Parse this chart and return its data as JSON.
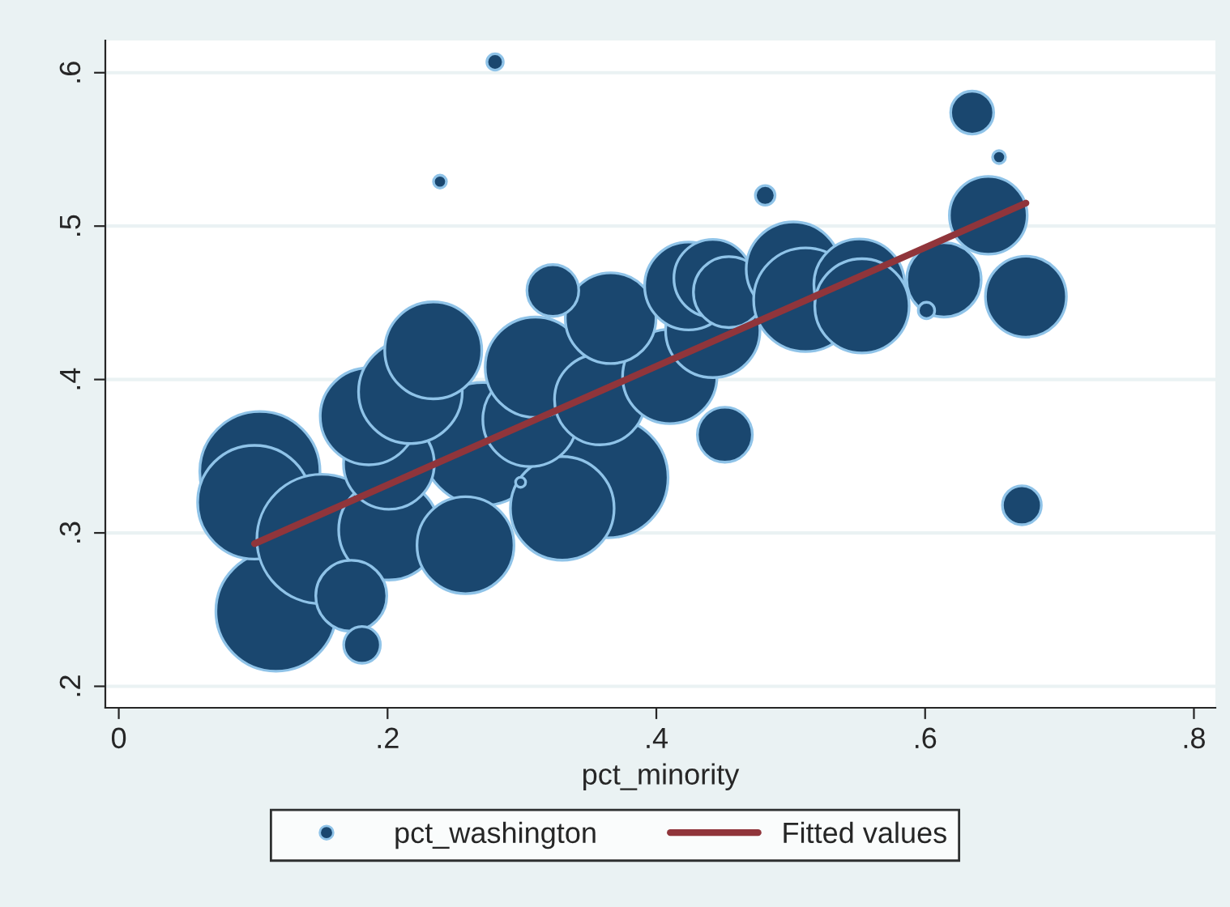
{
  "chart_data": {
    "type": "bubble",
    "xlabel": "pct_minority",
    "xlim": [
      -0.01,
      0.816
    ],
    "ylim": [
      0.186,
      0.621
    ],
    "xticks": [
      {
        "value": 0,
        "label": "0"
      },
      {
        "value": 0.2,
        "label": ".2"
      },
      {
        "value": 0.4,
        "label": ".4"
      },
      {
        "value": 0.6,
        "label": ".6"
      },
      {
        "value": 0.8,
        "label": ".8"
      }
    ],
    "yticks": [
      {
        "value": 0.2,
        "label": ".2"
      },
      {
        "value": 0.3,
        "label": ".3"
      },
      {
        "value": 0.4,
        "label": ".4"
      },
      {
        "value": 0.5,
        "label": ".5"
      },
      {
        "value": 0.6,
        "label": ".6"
      }
    ],
    "grid": "y",
    "legend": "bottom",
    "series": [
      {
        "name": "pct_washington",
        "color": "#1a476f",
        "x": [
          0.117,
          0.105,
          0.101,
          0.151,
          0.364,
          0.271,
          0.201,
          0.258,
          0.201,
          0.186,
          0.217,
          0.234,
          0.33,
          0.306,
          0.31,
          0.358,
          0.41,
          0.366,
          0.442,
          0.424,
          0.442,
          0.454,
          0.502,
          0.511,
          0.551,
          0.553,
          0.614,
          0.647,
          0.675,
          0.173,
          0.323,
          0.451,
          0.635,
          0.672,
          0.181,
          0.28,
          0.239,
          0.481,
          0.655,
          0.601,
          0.299
        ],
        "values": [
          0.249,
          0.34,
          0.32,
          0.296,
          0.336,
          0.358,
          0.302,
          0.292,
          0.345,
          0.376,
          0.392,
          0.419,
          0.316,
          0.374,
          0.408,
          0.387,
          0.402,
          0.44,
          0.432,
          0.461,
          0.466,
          0.457,
          0.472,
          0.452,
          0.462,
          0.448,
          0.465,
          0.507,
          0.454,
          0.259,
          0.458,
          0.364,
          0.574,
          0.318,
          0.227,
          0.607,
          0.529,
          0.52,
          0.545,
          0.445,
          0.333
        ],
        "sizes": [
          0.86,
          0.86,
          0.77,
          1.0,
          0.86,
          0.9,
          0.6,
          0.56,
          0.49,
          0.56,
          0.64,
          0.56,
          0.64,
          0.53,
          0.6,
          0.49,
          0.53,
          0.49,
          0.53,
          0.46,
          0.36,
          0.3,
          0.53,
          0.64,
          0.49,
          0.53,
          0.33,
          0.36,
          0.39,
          0.3,
          0.16,
          0.18,
          0.11,
          0.09,
          0.08,
          0.016,
          0.01,
          0.023,
          0.01,
          0.016,
          0.006
        ]
      },
      {
        "name": "Fitted values",
        "type": "line",
        "color": "#90353b",
        "x": [
          0.101,
          0.675
        ],
        "values": [
          0.293,
          0.515
        ]
      }
    ]
  }
}
